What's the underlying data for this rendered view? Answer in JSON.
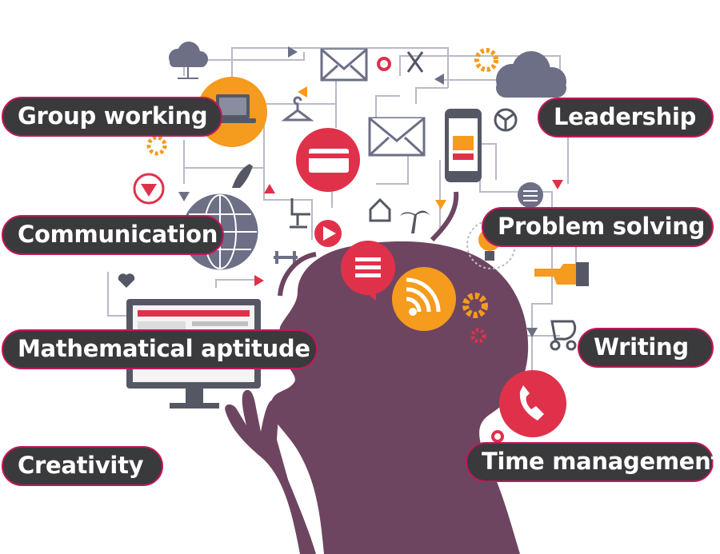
{
  "skills": {
    "group_working": "Group working",
    "communication": "Communication",
    "mathematical_aptitude": "Mathematical aptitude",
    "creativity": "Creativity",
    "leadership": "Leadership",
    "problem_solving": "Problem solving",
    "writing": "Writing",
    "time_management": "Time management"
  },
  "colors": {
    "pill_background": "#3a3a3c",
    "pill_border": "#c2185b",
    "silhouette": "#6e4560",
    "accent_orange": "#f59b1d",
    "accent_red": "#e0314b",
    "icon_gray": "#6c6f86",
    "line_gray": "#b9bac8"
  }
}
